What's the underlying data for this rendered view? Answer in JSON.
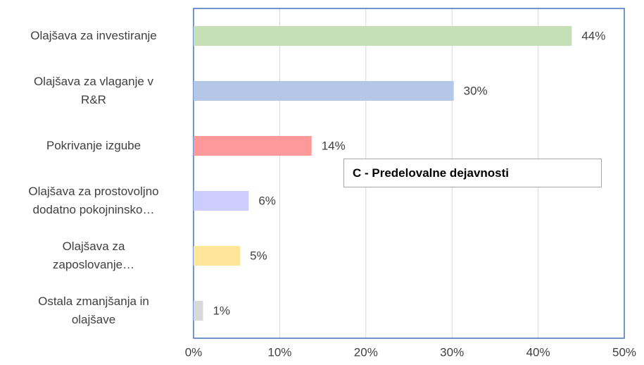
{
  "chart_data": {
    "type": "barh",
    "categories": [
      "Olajšava za investiranje",
      "Olajšava za vlaganje v\nR&R",
      "Pokrivanje izgube",
      "Olajšava za prostovoljno\ndodatno pokojninsko…",
      "Olajšava za\nzaposlovanje…",
      "Ostala zmanjšanja in\nolajšave"
    ],
    "series": [
      {
        "colors": [
          "#c5e0b4",
          "#b4c7e7",
          "#ff9999",
          "#ccccff",
          "#ffe699",
          "#d9d9d9"
        ],
        "values": [
          43.9,
          30.2,
          13.7,
          6.4,
          5.4,
          1.1
        ],
        "value_labels": [
          "44%",
          "30%",
          "14%",
          "6%",
          "5%",
          "1%"
        ]
      }
    ],
    "xlim": [
      0,
      50
    ],
    "xticks": [
      {
        "value": 0,
        "label": "0%"
      },
      {
        "value": 10,
        "label": "10%"
      },
      {
        "value": 20,
        "label": "20%"
      },
      {
        "value": 30,
        "label": "30%"
      },
      {
        "value": 40,
        "label": "40%"
      },
      {
        "value": 50,
        "label": "50%"
      }
    ],
    "grid": true,
    "annotation": "C - Predelovalne dejavnosti"
  }
}
